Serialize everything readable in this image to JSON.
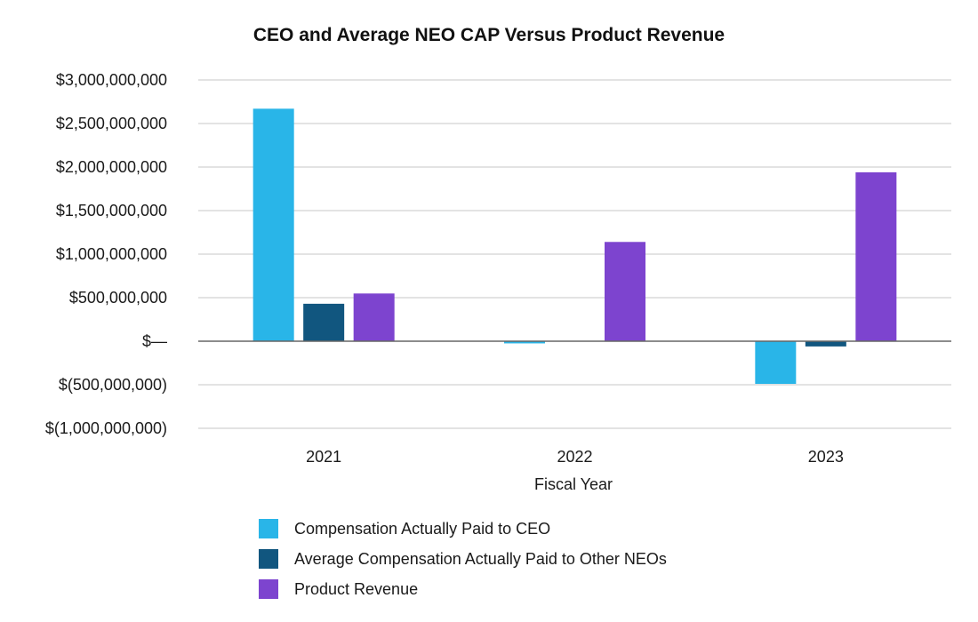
{
  "chart_data": {
    "type": "bar",
    "title": "CEO and Average NEO CAP Versus Product Revenue",
    "xlabel": "Fiscal Year",
    "ylabel": "",
    "categories": [
      "2021",
      "2022",
      "2023"
    ],
    "series": [
      {
        "name": "Compensation Actually Paid to CEO",
        "color": "#29b5e8",
        "values": [
          2670000000,
          -25000000,
          -490000000
        ]
      },
      {
        "name": "Average Compensation Actually Paid to Other NEOs",
        "color": "#11567f",
        "values": [
          430000000,
          0,
          -60000000
        ]
      },
      {
        "name": "Product Revenue",
        "color": "#7d44cf",
        "values": [
          548000000,
          1140000000,
          1940000000
        ]
      }
    ],
    "ylim": [
      -1000000000,
      3000000000
    ],
    "yticks": [
      {
        "value": 3000000000,
        "label": "$3,000,000,000"
      },
      {
        "value": 2500000000,
        "label": "$2,500,000,000"
      },
      {
        "value": 2000000000,
        "label": "$2,000,000,000"
      },
      {
        "value": 1500000000,
        "label": "$1,500,000,000"
      },
      {
        "value": 1000000000,
        "label": "$1,000,000,000"
      },
      {
        "value": 500000000,
        "label": "$500,000,000"
      },
      {
        "value": 0,
        "label": "$—"
      },
      {
        "value": -500000000,
        "label": "$(500,000,000)"
      },
      {
        "value": -1000000000,
        "label": "$(1,000,000,000)"
      }
    ],
    "grid": true,
    "legend_position": "bottom"
  }
}
